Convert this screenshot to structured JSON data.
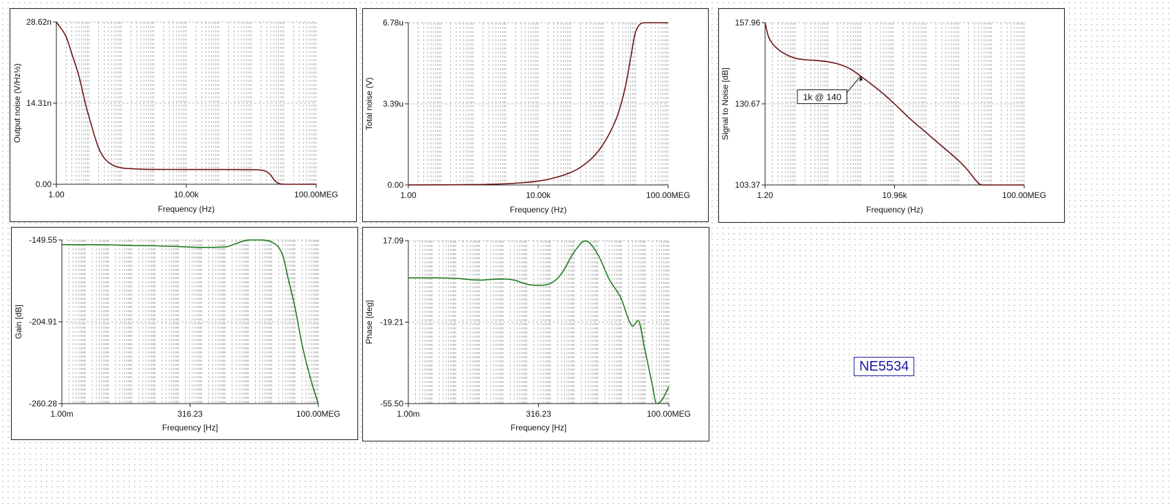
{
  "circuit_label": "NE5534",
  "colors": {
    "noise_curve": "#6b0f0f",
    "ac_curve": "#1e7a1e",
    "grid": "#b4b4b4",
    "label_blue": "#1a1aa0"
  },
  "chart_data": [
    {
      "type": "line",
      "ylabel": "Output noise (V/Hz½)",
      "xlabel": "Frequency (Hz)",
      "x_scale": "log",
      "xlim": [
        1,
        100000000
      ],
      "ylim": [
        0,
        2.862e-08
      ],
      "x_tick_labels": [
        "1.00",
        "10.00k",
        "100.00MEG"
      ],
      "y_tick_labels": [
        "0.00",
        "14.31n",
        "28.62n"
      ],
      "series": [
        {
          "x": [
            1,
            2,
            3,
            5,
            8,
            10,
            20,
            30,
            50,
            100,
            200,
            300,
            500,
            1000,
            10000,
            100000,
            1000000,
            2000000,
            3000000,
            4000000,
            5000000,
            7000000,
            10000000,
            100000000
          ],
          "values": [
            2.862e-08,
            2.6e-08,
            2.3e-08,
            1.9e-08,
            1.4e-08,
            1.2e-08,
            6.4e-09,
            4.6e-09,
            3.5e-09,
            2.9e-09,
            2.75e-09,
            2.7e-09,
            2.65e-09,
            2.62e-09,
            2.6e-09,
            2.6e-09,
            2.58e-09,
            2.5e-09,
            2.2e-09,
            1.6e-09,
            8e-10,
            1.5e-10,
            0,
            0
          ]
        }
      ]
    },
    {
      "type": "line",
      "ylabel": "Total noise (V)",
      "xlabel": "Frequency (Hz)",
      "x_scale": "log",
      "xlim": [
        1,
        100000000
      ],
      "ylim": [
        0,
        6.78e-06
      ],
      "x_tick_labels": [
        "1.00",
        "10.00k",
        "100.00MEG"
      ],
      "y_tick_labels": [
        "0.00",
        "3.39u",
        "6.78u"
      ],
      "series": [
        {
          "x": [
            1,
            10,
            100,
            1000,
            3000,
            10000,
            30000,
            100000,
            200000,
            500000,
            1000000,
            2000000,
            3000000,
            5000000,
            7000000,
            10000000,
            20000000,
            100000000
          ],
          "values": [
            2e-09,
            5e-09,
            1.5e-08,
            5e-08,
            9e-08,
            1.6e-07,
            2.9e-07,
            5.2e-07,
            7.4e-07,
            1.18e-06,
            1.7e-06,
            2.45e-06,
            3.05e-06,
            4.2e-06,
            5.3e-06,
            6.4e-06,
            6.78e-06,
            6.78e-06
          ]
        }
      ]
    },
    {
      "type": "line",
      "ylabel": "Signal to Noise [dB]",
      "xlabel": "Frequency (Hz)",
      "x_scale": "log",
      "xlim": [
        1.2,
        100000000
      ],
      "ylim": [
        103.37,
        157.96
      ],
      "x_tick_labels": [
        "1.20",
        "10.96k",
        "100.00MEG"
      ],
      "y_tick_labels": [
        "103.37",
        "130.67",
        "157.96"
      ],
      "annotations": [
        {
          "text": "1k @ 140",
          "x": 1000,
          "y": 140
        }
      ],
      "series": [
        {
          "x": [
            1.2,
            1.5,
            2,
            3,
            5,
            10,
            20,
            50,
            100,
            200,
            500,
            1000,
            2000,
            5000,
            10960,
            30000,
            100000,
            300000,
            1000000,
            2000000,
            3000000,
            5000000,
            100000000
          ],
          "values": [
            157.96,
            153.5,
            151,
            149,
            147.4,
            146,
            145.5,
            145.2,
            144.8,
            144.1,
            142.3,
            140,
            137.5,
            134,
            130.6,
            126,
            121,
            116.5,
            111.5,
            108,
            105.5,
            103.37,
            103.37
          ]
        }
      ]
    },
    {
      "type": "line",
      "ylabel": "Gain [dB]",
      "xlabel": "Frequency [Hz]",
      "x_scale": "log",
      "xlim": [
        0.001,
        100000000
      ],
      "ylim": [
        -260.28,
        -149.55
      ],
      "x_tick_labels": [
        "1.00m",
        "316.23",
        "100.00MEG"
      ],
      "y_tick_labels": [
        "-260.28",
        "-204.91",
        "-149.55"
      ],
      "series": [
        {
          "x": [
            0.001,
            0.01,
            0.1,
            1,
            10,
            100,
            1000,
            10000,
            30000,
            100000,
            300000,
            1000000,
            3000000,
            5000000,
            10000000,
            20000000,
            50000000,
            100000000
          ],
          "values": [
            -152.7,
            -152.7,
            -152.8,
            -153.3,
            -153.5,
            -154,
            -154.6,
            -154.3,
            -152,
            -149.6,
            -149.55,
            -151,
            -160,
            -175,
            -195,
            -220,
            -245,
            -260.28
          ]
        }
      ]
    },
    {
      "type": "line",
      "ylabel": "Phase [deg]",
      "xlabel": "Frequency [Hz]",
      "x_scale": "log",
      "xlim": [
        0.001,
        100000000
      ],
      "ylim": [
        -55.5,
        17.09
      ],
      "x_tick_labels": [
        "1.00m",
        "316.23",
        "100.00MEG"
      ],
      "y_tick_labels": [
        "-55.50",
        "-19.21",
        "17.09"
      ],
      "series": [
        {
          "x": [
            0.001,
            0.01,
            0.1,
            1,
            3,
            10,
            30,
            100,
            300,
            1000,
            3000,
            10000,
            30000,
            100000,
            300000,
            1000000,
            2000000,
            3000000,
            5000000,
            10000000,
            20000000,
            30000000,
            50000000,
            100000000
          ],
          "values": [
            0.5,
            0.5,
            0.3,
            -0.5,
            -0.2,
            0,
            -0.5,
            -2.3,
            -2.8,
            -2,
            2.5,
            12,
            17,
            11,
            0,
            -9,
            -18,
            -21,
            -18.5,
            -32,
            -47,
            -55.5,
            -54,
            -48
          ]
        }
      ]
    }
  ]
}
